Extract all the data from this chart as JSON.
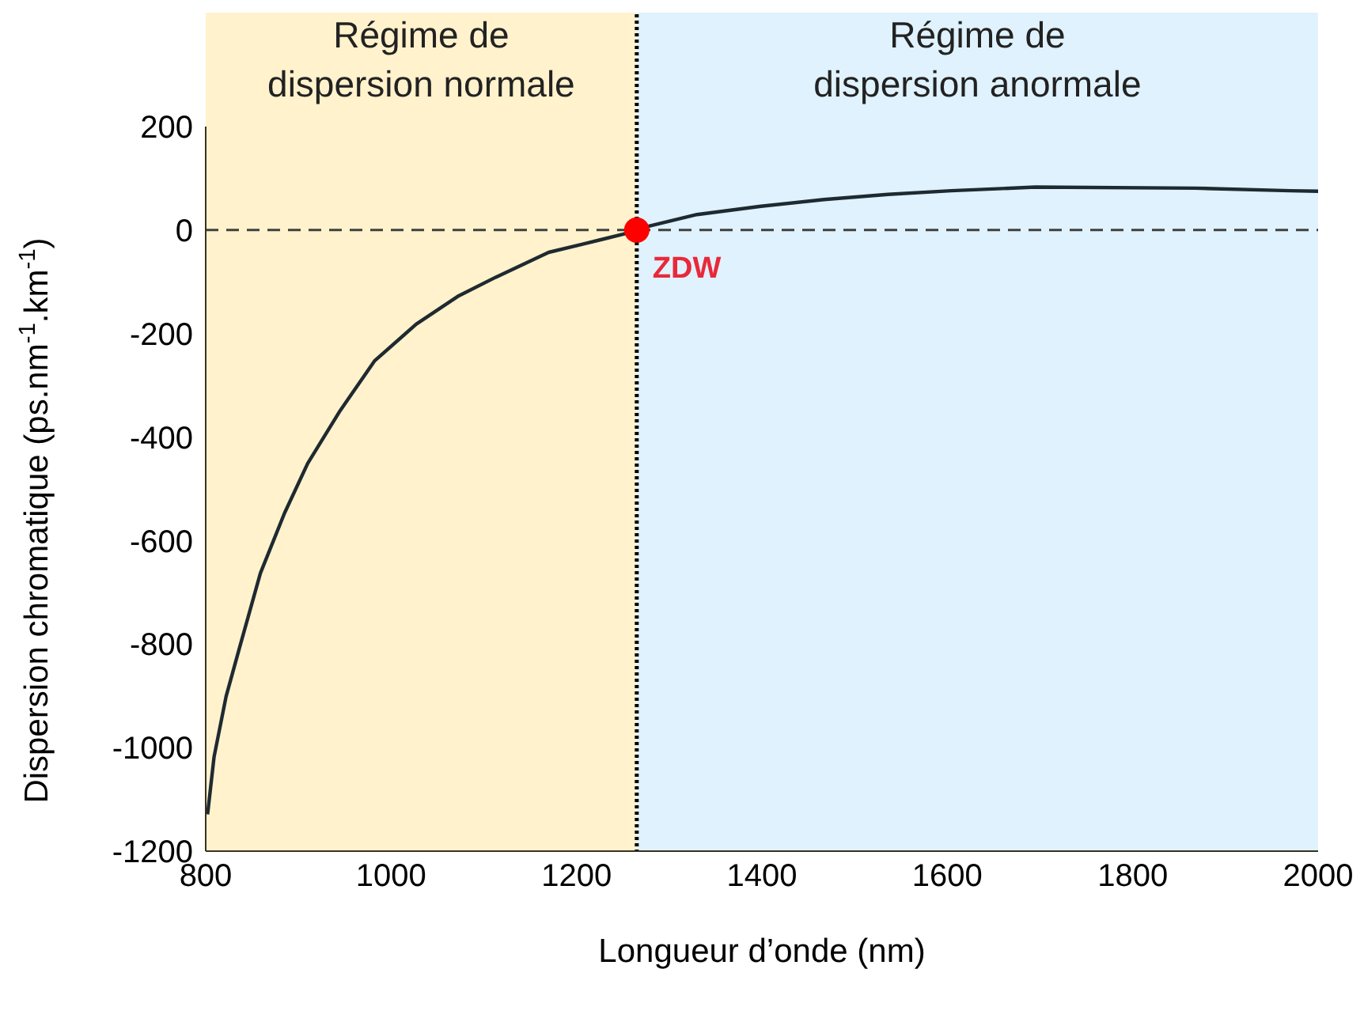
{
  "chart_data": {
    "type": "line",
    "xlabel": "Longueur d’onde (nm)",
    "ylabel": "Dispersion chromatique (ps.nm$^{-1}$.km$^{-1}$)",
    "xlim": [
      800,
      2000
    ],
    "xticks": [
      800,
      1000,
      1200,
      1400,
      1600,
      1800,
      2000
    ],
    "ylim": [
      -1200,
      200
    ],
    "yticks": [
      -1200,
      -1000,
      -800,
      -600,
      -400,
      -200,
      0,
      200
    ],
    "grid": false,
    "legend": false,
    "marker": "none",
    "line_style": "solid",
    "series": [
      {
        "color": "#1f2a30",
        "x": [
          802,
          809,
          822,
          836,
          859,
          885,
          910,
          945,
          982,
          1027,
          1073,
          1113,
          1170,
          1205,
          1250,
          1266,
          1279,
          1330,
          1399,
          1467,
          1536,
          1604,
          1695,
          1867,
          1970,
          2000
        ],
        "values": [
          -1129,
          -1018,
          -901,
          -810,
          -663,
          -547,
          -451,
          -349,
          -253,
          -182,
          -127,
          -91,
          -43,
          -28,
          -8,
          0,
          8,
          30,
          46,
          59,
          69,
          76,
          83,
          81,
          76,
          75
        ]
      },
      {
        "type": "scatter",
        "marker": "circle",
        "color": "#ff0000",
        "x": [
          1265
        ],
        "values": [
          0
        ]
      }
    ],
    "bands": [
      {
        "axis": "x",
        "from": 800,
        "to": 1265,
        "label": "Régime de\ndispersion normale",
        "color": "#fff2cc"
      },
      {
        "axis": "x",
        "from": 1265,
        "to": 2000,
        "label": "Régime de\ndispersion anormale",
        "color": "#dff2fd"
      }
    ],
    "ref_lines": [
      {
        "axis": "y",
        "value": 0,
        "line_style": "dashed",
        "color": "#404040"
      },
      {
        "axis": "x",
        "value": 1265,
        "line_style": "dotted",
        "color": "#000000"
      }
    ],
    "annotations": [
      {
        "text": "ZDW",
        "x": 1265,
        "y": 0
      }
    ]
  }
}
